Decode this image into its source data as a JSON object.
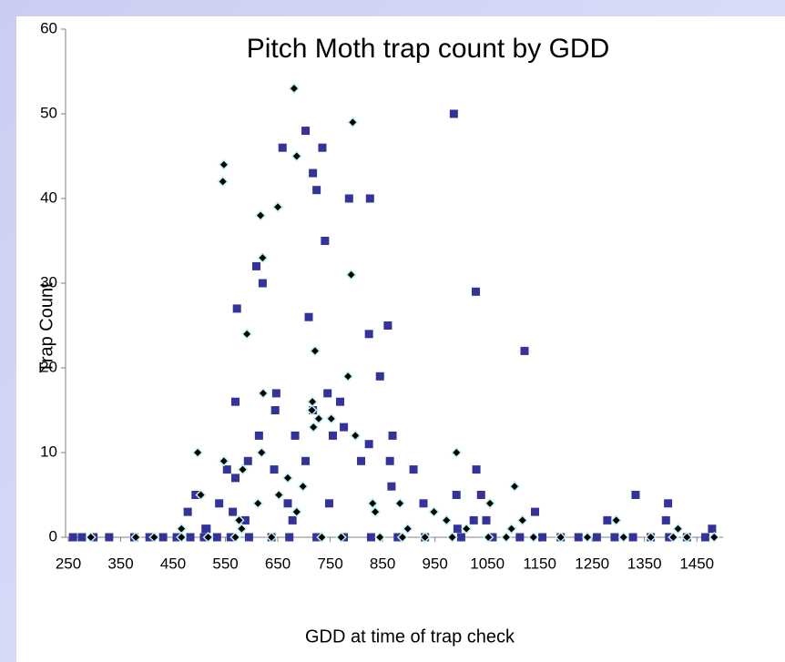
{
  "chart_data": {
    "type": "scatter",
    "title": "Pitch Moth trap count by GDD",
    "x_label": "GDD at time of trap check",
    "y_label": "Trap Count",
    "xlim": [
      250,
      1500
    ],
    "xticks": [
      250,
      350,
      450,
      550,
      650,
      750,
      850,
      950,
      1050,
      1150,
      1250,
      1350,
      1450
    ],
    "ylim": [
      0,
      60
    ],
    "yticks": [
      0,
      10,
      20,
      30,
      40,
      50,
      60
    ],
    "grid": false,
    "series": [
      {
        "color": "#333399",
        "marker": "square",
        "x": [
          659,
          703,
          724,
          735,
          740,
          717,
          786,
          826,
          986,
          1028,
          1121,
          709,
          609,
          621,
          572,
          569,
          647,
          645,
          614,
          824,
          860,
          845,
          745,
          717,
          769,
          776,
          683,
          755,
          809,
          824,
          864,
          869,
          867,
          909,
          928,
          1029,
          1038,
          991,
          1048,
          1024,
          993,
          1141,
          1333,
          1395,
          1279,
          1391,
          1479,
          593,
          553,
          643,
          569,
          538,
          493,
          478,
          514,
          703,
          669,
          748,
          564,
          588,
          678,
          512,
          259,
          276,
          298,
          328,
          376,
          405,
          431,
          457,
          483,
          509,
          534,
          560,
          595,
          638,
          672,
          724,
          776,
          828,
          879,
          931,
          1000,
          1060,
          1112,
          1155,
          1190,
          1224,
          1259,
          1293,
          1328,
          1362,
          1397,
          1431,
          1466
        ],
        "values": [
          46,
          48,
          41,
          46,
          35,
          43,
          40,
          40,
          50,
          29,
          22,
          26,
          32,
          30,
          27,
          16,
          17,
          15,
          12,
          24,
          25,
          19,
          17,
          15,
          16,
          13,
          12,
          12,
          9,
          11,
          9,
          12,
          6,
          8,
          4,
          8,
          5,
          5,
          2,
          2,
          1,
          3,
          5,
          4,
          2,
          2,
          1,
          9,
          8,
          8,
          7,
          4,
          5,
          3,
          1,
          9,
          4,
          4,
          3,
          2,
          2,
          1,
          0,
          0,
          0,
          0,
          0,
          0,
          0,
          0,
          0,
          0,
          0,
          0,
          0,
          0,
          0,
          0,
          0,
          0,
          0,
          0,
          0,
          0,
          0,
          0,
          0,
          0,
          0,
          0,
          0,
          0,
          0,
          0,
          0
        ]
      },
      {
        "color": "#000000",
        "marker": "diamond",
        "x": [
          681,
          547,
          545,
          793,
          686,
          650,
          617,
          621,
          790,
          591,
          721,
          784,
          622,
          716,
          715,
          728,
          752,
          718,
          798,
          497,
          619,
          991,
          547,
          583,
          669,
          698,
          1102,
          503,
          652,
          612,
          831,
          883,
          1055,
          836,
          686,
          948,
          576,
          972,
          1117,
          1296,
          466,
          581,
          898,
          1010,
          1096,
          1414,
          293,
          379,
          414,
          466,
          517,
          569,
          638,
          734,
          771,
          845,
          888,
          931,
          983,
          1052,
          1086,
          1138,
          1190,
          1241,
          1310,
          1362,
          1405,
          1431,
          1483
        ],
        "values": [
          53,
          44,
          42,
          49,
          45,
          39,
          38,
          33,
          31,
          24,
          22,
          19,
          17,
          16,
          15,
          14,
          14,
          13,
          12,
          10,
          10,
          10,
          9,
          8,
          7,
          6,
          6,
          5,
          5,
          4,
          4,
          4,
          4,
          3,
          3,
          3,
          2,
          2,
          2,
          2,
          1,
          1,
          1,
          1,
          1,
          1,
          0,
          0,
          0,
          0,
          0,
          0,
          0,
          0,
          0,
          0,
          0,
          0,
          0,
          0,
          0,
          0,
          0,
          0,
          0,
          0,
          0,
          0,
          0
        ]
      }
    ]
  }
}
